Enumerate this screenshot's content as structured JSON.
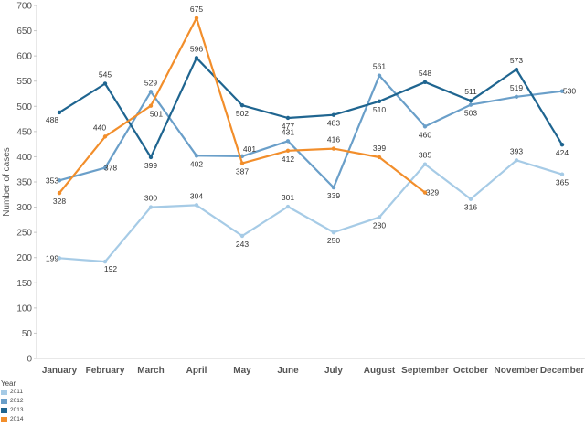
{
  "chart_data": {
    "type": "line",
    "ylabel": "Number of cases",
    "ylim": [
      0,
      700
    ],
    "yticks": [
      0,
      50,
      100,
      150,
      200,
      250,
      300,
      350,
      400,
      450,
      500,
      550,
      600,
      650,
      700
    ],
    "grid": false,
    "categories": [
      "January",
      "February",
      "March",
      "April",
      "May",
      "June",
      "July",
      "August",
      "September",
      "October",
      "November",
      "December"
    ],
    "series": [
      {
        "name": "2011",
        "color": "#a6cbe6",
        "values": [
          199,
          192,
          300,
          304,
          243,
          301,
          250,
          280,
          385,
          316,
          393,
          365
        ]
      },
      {
        "name": "2012",
        "color": "#6a9fc9",
        "values": [
          353,
          378,
          529,
          402,
          401,
          431,
          339,
          561,
          460,
          503,
          519,
          530
        ]
      },
      {
        "name": "2013",
        "color": "#1f6590",
        "values": [
          488,
          545,
          399,
          596,
          502,
          477,
          483,
          510,
          548,
          511,
          573,
          424
        ]
      },
      {
        "name": "2014",
        "color": "#f28e2b",
        "values": [
          328,
          440,
          501,
          675,
          387,
          412,
          416,
          399,
          329,
          null,
          null,
          null
        ]
      }
    ],
    "legend": {
      "title": "Year",
      "placement": "bottom-left"
    }
  }
}
